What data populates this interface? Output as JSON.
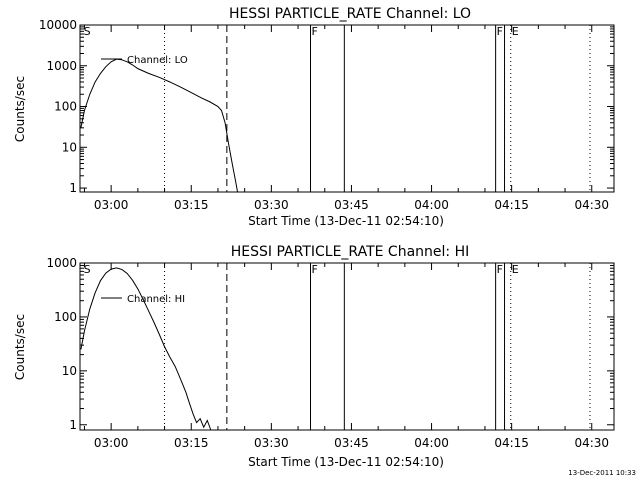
{
  "footer": {
    "timestamp": "13-Dec-2011 10:33"
  },
  "chart_data": [
    {
      "type": "line",
      "title": "HESSI PARTICLE_RATE Channel: LO",
      "xlabel": "Start Time (13-Dec-11 02:54:10)",
      "ylabel": "Counts/sec",
      "yscale": "log",
      "xlim": [
        "02:54:10",
        "04:34:10"
      ],
      "ylim": [
        0.8,
        10000
      ],
      "xticks": [
        "03:00",
        "03:15",
        "03:30",
        "03:45",
        "04:00",
        "04:15",
        "04:30"
      ],
      "yticks": [
        "1",
        "10",
        "100",
        "1000",
        "10000"
      ],
      "legend": {
        "position": "top-left",
        "entries": [
          "Channel: LO"
        ]
      },
      "series": [
        {
          "name": "Channel: LO",
          "points": [
            [
              "02:54:20",
              30
            ],
            [
              "02:55:00",
              80
            ],
            [
              "02:56:00",
              200
            ],
            [
              "02:57:00",
              400
            ],
            [
              "02:58:00",
              650
            ],
            [
              "02:59:00",
              950
            ],
            [
              "03:00:00",
              1250
            ],
            [
              "03:01:00",
              1450
            ],
            [
              "03:02:00",
              1400
            ],
            [
              "03:03:00",
              1250
            ],
            [
              "03:04:00",
              1050
            ],
            [
              "03:05:00",
              850
            ],
            [
              "03:07:00",
              650
            ],
            [
              "03:09:00",
              520
            ],
            [
              "03:11:00",
              400
            ],
            [
              "03:13:00",
              300
            ],
            [
              "03:15:00",
              220
            ],
            [
              "03:17:00",
              160
            ],
            [
              "03:18:30",
              130
            ],
            [
              "03:20:00",
              100
            ],
            [
              "03:20:40",
              80
            ],
            [
              "03:21:20",
              40
            ],
            [
              "03:22:00",
              12
            ],
            [
              "03:22:40",
              4
            ],
            [
              "03:23:20",
              1.4
            ],
            [
              "03:23:40",
              0.8
            ]
          ]
        }
      ],
      "markers": [
        {
          "time": "02:54:40",
          "label": "S",
          "style": "none"
        },
        {
          "time": "03:10:00",
          "label": "",
          "style": "dotted"
        },
        {
          "time": "03:21:40",
          "label": "",
          "style": "dashed"
        },
        {
          "time": "03:37:20",
          "label": "F",
          "style": "solid"
        },
        {
          "time": "03:43:40",
          "label": "",
          "style": "solid"
        },
        {
          "time": "04:12:00",
          "label": "F",
          "style": "solid"
        },
        {
          "time": "04:13:40",
          "label": "",
          "style": "solid"
        },
        {
          "time": "04:14:50",
          "label": "E",
          "style": "dotted"
        },
        {
          "time": "04:29:40",
          "label": "",
          "style": "dotted"
        }
      ]
    },
    {
      "type": "line",
      "title": "HESSI PARTICLE_RATE Channel: HI",
      "xlabel": "Start Time (13-Dec-11 02:54:10)",
      "ylabel": "Counts/sec",
      "yscale": "log",
      "xlim": [
        "02:54:10",
        "04:34:10"
      ],
      "ylim": [
        0.8,
        1000
      ],
      "xticks": [
        "03:00",
        "03:15",
        "03:30",
        "03:45",
        "04:00",
        "04:15",
        "04:30"
      ],
      "yticks": [
        "1",
        "10",
        "100",
        "1000"
      ],
      "legend": {
        "position": "top-left",
        "entries": [
          "Channel: HI"
        ]
      },
      "series": [
        {
          "name": "Channel: HI",
          "points": [
            [
              "02:54:20",
              25
            ],
            [
              "02:55:00",
              55
            ],
            [
              "02:56:00",
              140
            ],
            [
              "02:57:00",
              280
            ],
            [
              "02:58:00",
              470
            ],
            [
              "02:59:00",
              650
            ],
            [
              "03:00:00",
              770
            ],
            [
              "03:01:00",
              810
            ],
            [
              "03:02:00",
              760
            ],
            [
              "03:03:00",
              640
            ],
            [
              "03:04:00",
              480
            ],
            [
              "03:05:00",
              330
            ],
            [
              "03:06:00",
              210
            ],
            [
              "03:07:00",
              130
            ],
            [
              "03:08:00",
              80
            ],
            [
              "03:09:00",
              48
            ],
            [
              "03:10:00",
              28
            ],
            [
              "03:11:00",
              18
            ],
            [
              "03:12:00",
              12
            ],
            [
              "03:13:00",
              7
            ],
            [
              "03:14:00",
              4
            ],
            [
              "03:14:40",
              2.5
            ],
            [
              "03:15:20",
              1.6
            ],
            [
              "03:16:00",
              1.1
            ],
            [
              "03:16:40",
              1.3
            ],
            [
              "03:17:20",
              0.9
            ],
            [
              "03:18:00",
              1.2
            ],
            [
              "03:18:40",
              0.8
            ]
          ]
        }
      ],
      "markers": [
        {
          "time": "02:54:40",
          "label": "S",
          "style": "none"
        },
        {
          "time": "03:10:00",
          "label": "",
          "style": "dotted"
        },
        {
          "time": "03:21:40",
          "label": "",
          "style": "dashed"
        },
        {
          "time": "03:37:20",
          "label": "F",
          "style": "solid"
        },
        {
          "time": "03:43:40",
          "label": "",
          "style": "solid"
        },
        {
          "time": "04:12:00",
          "label": "F",
          "style": "solid"
        },
        {
          "time": "04:13:40",
          "label": "",
          "style": "solid"
        },
        {
          "time": "04:14:50",
          "label": "E",
          "style": "dotted"
        },
        {
          "time": "04:29:40",
          "label": "",
          "style": "dotted"
        }
      ]
    }
  ]
}
